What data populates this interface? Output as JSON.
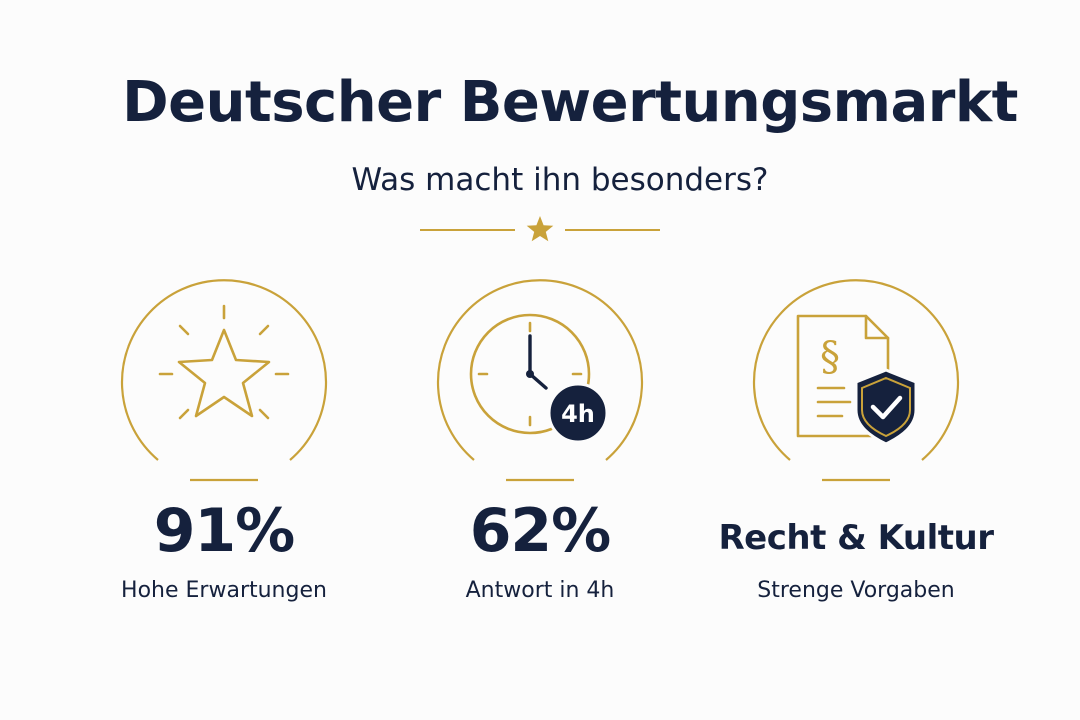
{
  "header": {
    "title": "Deutscher Bewertungsmarkt",
    "subtitle": "Was macht ihn besonders?"
  },
  "features": [
    {
      "icon": "star-icon",
      "value": "91%",
      "label": "Hohe Erwartungen"
    },
    {
      "icon": "clock-icon",
      "badge": "4h",
      "value": "62%",
      "label": "Antwort in 4h"
    },
    {
      "icon": "legal-document-shield-icon",
      "paragraph_symbol": "§",
      "value": "Recht & Kultur",
      "label": "Strenge Vorgaben"
    }
  ],
  "colors": {
    "navy": "#15213d",
    "gold": "#c9a23a",
    "background": "#fcfcfc"
  }
}
